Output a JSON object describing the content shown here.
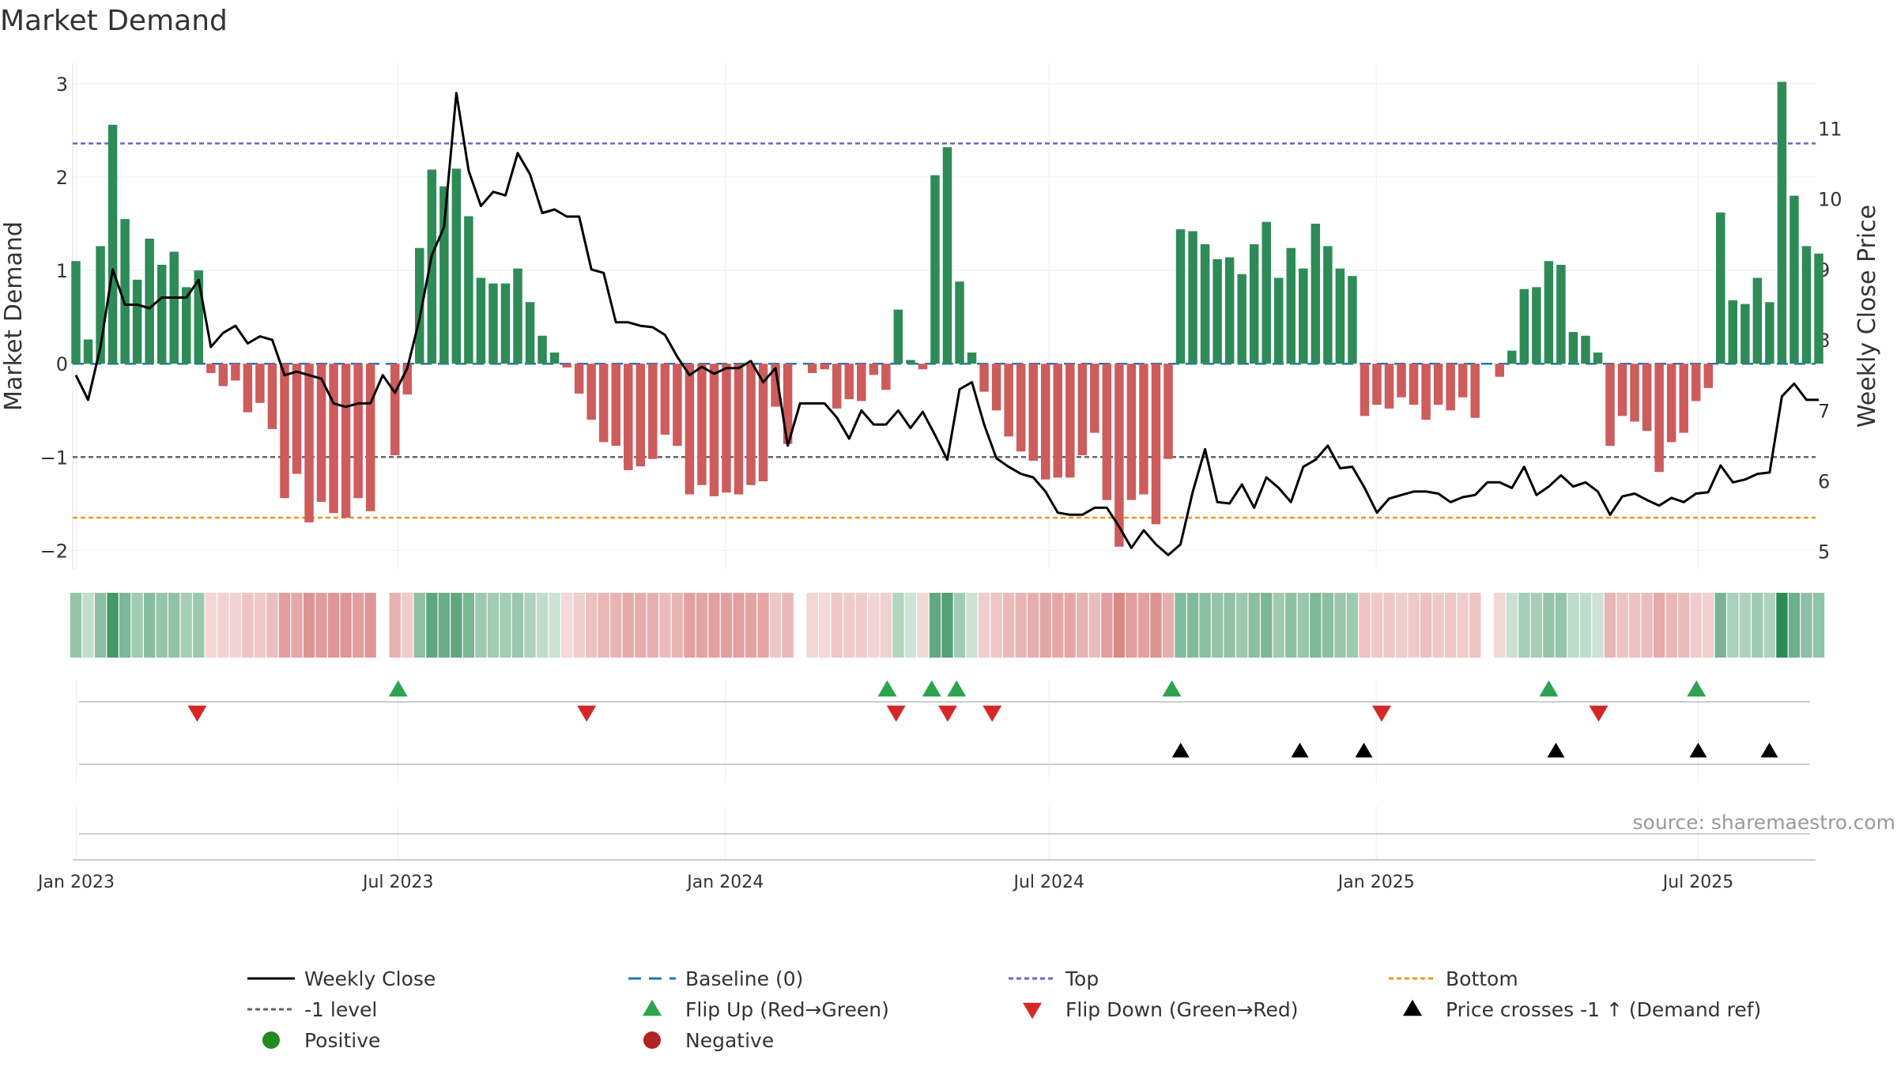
{
  "colors": {
    "positive": "#2e8b57",
    "negative": "#cd5c5c",
    "close": "#000000",
    "baseline": "#1f77b4",
    "top": "#6666cc",
    "bottom": "#e69a1f",
    "minus_one": "#666666",
    "flip_up": "#2ca44f",
    "flip_down": "#d62728",
    "cross": "#000000",
    "dot_positive": "#228b22",
    "dot_negative": "#b22222"
  },
  "chart_data": {
    "type": "bar",
    "title": "Market Demand",
    "ylabel": "Market Demand",
    "y2label": "Weekly Close Price",
    "ylim": [
      -2.2,
      3.05
    ],
    "y2lim": [
      4.75,
      11.7
    ],
    "yticks": [
      -2,
      -1,
      0,
      1,
      2,
      3
    ],
    "y2ticks": [
      5,
      6,
      7,
      8,
      9,
      10,
      11
    ],
    "yticklabels": [
      "−2",
      "−1",
      "0",
      "1",
      "2",
      "3"
    ],
    "y2ticklabels": [
      "5",
      "6",
      "7",
      "8",
      "9",
      "10",
      "11"
    ],
    "date_start": "2022-12-30",
    "date_end": "2025-09-05",
    "xticks": [
      "2023-01-01",
      "2023-07-01",
      "2024-01-01",
      "2024-07-01",
      "2025-01-01",
      "2025-07-01"
    ],
    "xticklabels": [
      "Jan 2023",
      "Jul 2023",
      "Jan 2024",
      "Jul 2024",
      "Jan 2025",
      "Jul 2025"
    ],
    "top_level": 2.36,
    "bottom_level": -1.65,
    "minus_one_level": -1,
    "baseline_level": 0,
    "demand": [
      1.1,
      0.26,
      1.26,
      2.56,
      1.55,
      0.9,
      1.34,
      1.06,
      1.2,
      0.82,
      1.0,
      -0.1,
      -0.24,
      -0.18,
      -0.52,
      -0.42,
      -0.7,
      -1.44,
      -1.18,
      -1.7,
      -1.48,
      -1.6,
      -1.65,
      -1.44,
      -1.58,
      0,
      -0.98,
      -0.33,
      1.24,
      2.08,
      1.9,
      2.09,
      1.58,
      0.92,
      0.86,
      0.86,
      1.02,
      0.66,
      0.3,
      0.12,
      -0.04,
      -0.32,
      -0.6,
      -0.84,
      -0.88,
      -1.14,
      -1.1,
      -1.02,
      -0.76,
      -0.88,
      -1.4,
      -1.3,
      -1.42,
      -1.38,
      -1.4,
      -1.3,
      -1.26,
      -0.46,
      -0.86,
      0,
      -0.1,
      -0.06,
      -0.48,
      -0.38,
      -0.4,
      -0.12,
      -0.28,
      0.58,
      0.04,
      -0.06,
      2.02,
      2.32,
      0.88,
      0.12,
      -0.3,
      -0.5,
      -0.78,
      -0.94,
      -1.04,
      -1.24,
      -1.22,
      -1.22,
      -0.98,
      -0.74,
      -1.46,
      -1.96,
      -1.46,
      -1.4,
      -1.72,
      -1.02,
      1.44,
      1.42,
      1.28,
      1.12,
      1.14,
      0.96,
      1.28,
      1.52,
      0.92,
      1.24,
      1.02,
      1.5,
      1.26,
      1.02,
      0.94,
      -0.56,
      -0.44,
      -0.48,
      -0.36,
      -0.44,
      -0.6,
      -0.44,
      -0.5,
      -0.36,
      -0.58,
      0,
      -0.14,
      0.14,
      0.8,
      0.82,
      1.1,
      1.06,
      0.34,
      0.3,
      0.12,
      -0.88,
      -0.56,
      -0.62,
      -0.72,
      -1.16,
      -0.84,
      -0.74,
      -0.4,
      -0.26,
      1.62,
      0.68,
      0.64,
      0.92,
      0.66,
      3.02,
      1.8,
      1.26,
      1.18
    ],
    "close": [
      7.5,
      7.15,
      7.9,
      9.0,
      8.5,
      8.5,
      8.45,
      8.6,
      8.6,
      8.6,
      8.85,
      7.9,
      8.1,
      8.2,
      7.95,
      8.05,
      8.0,
      7.5,
      7.55,
      7.5,
      7.45,
      7.1,
      7.05,
      7.1,
      7.1,
      7.5,
      7.25,
      7.6,
      8.3,
      9.2,
      9.6,
      11.5,
      10.4,
      9.9,
      10.1,
      10.05,
      10.65,
      10.35,
      9.8,
      9.85,
      9.75,
      9.75,
      9.0,
      8.95,
      8.25,
      8.25,
      8.2,
      8.18,
      8.07,
      7.76,
      7.5,
      7.62,
      7.52,
      7.6,
      7.6,
      7.7,
      7.4,
      7.6,
      6.5,
      7.1,
      7.1,
      7.1,
      6.9,
      6.6,
      7.0,
      6.8,
      6.8,
      7.0,
      6.75,
      6.98,
      6.65,
      6.3,
      7.3,
      7.4,
      6.8,
      6.32,
      6.2,
      6.1,
      6.05,
      5.85,
      5.55,
      5.52,
      5.52,
      5.62,
      5.62,
      5.35,
      5.05,
      5.3,
      5.1,
      4.95,
      5.1,
      5.85,
      6.45,
      5.7,
      5.68,
      5.95,
      5.62,
      6.05,
      5.9,
      5.7,
      6.2,
      6.3,
      6.5,
      6.18,
      6.2,
      5.9,
      5.55,
      5.75,
      5.8,
      5.85,
      5.85,
      5.82,
      5.7,
      5.77,
      5.8,
      5.98,
      5.98,
      5.9,
      6.2,
      5.8,
      5.92,
      6.08,
      5.92,
      5.98,
      5.85,
      5.52,
      5.78,
      5.82,
      5.73,
      5.65,
      5.76,
      5.7,
      5.82,
      5.84,
      6.22,
      5.98,
      6.02,
      6.1,
      6.12,
      7.2,
      7.38,
      7.15,
      7.15
    ],
    "flip_up": [
      "2023-07-01",
      "2024-04-01",
      "2024-04-26",
      "2024-05-10",
      "2024-09-08",
      "2025-04-08",
      "2025-06-30"
    ],
    "flip_down": [
      "2023-03-10",
      "2023-10-15",
      "2024-04-06",
      "2024-05-05",
      "2024-05-30",
      "2025-01-04",
      "2025-05-06"
    ],
    "price_cross": [
      "2024-09-13",
      "2024-11-19",
      "2024-12-25",
      "2025-04-12",
      "2025-07-01",
      "2025-08-10"
    ],
    "legend": [
      {
        "key": "close",
        "label": "Weekly Close"
      },
      {
        "key": "baseline",
        "label": "Baseline (0)"
      },
      {
        "key": "top",
        "label": "Top"
      },
      {
        "key": "bottom",
        "label": "Bottom"
      },
      {
        "key": "minus_one",
        "label": "-1 level"
      },
      {
        "key": "flip_up",
        "label": "Flip Up (Red→Green)"
      },
      {
        "key": "flip_down",
        "label": "Flip Down (Green→Red)"
      },
      {
        "key": "cross",
        "label": "Price crosses -1 ↑ (Demand ref)"
      },
      {
        "key": "dot_positive",
        "label": "Positive"
      },
      {
        "key": "dot_negative",
        "label": "Negative"
      }
    ],
    "source": "source: sharemaestro.com"
  }
}
